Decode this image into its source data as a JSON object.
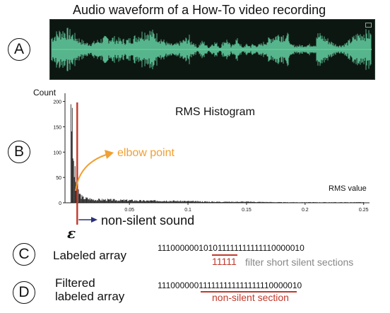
{
  "panels": {
    "a": "A",
    "b": "B",
    "c": "C",
    "d": "D"
  },
  "waveform": {
    "title": "Audio waveform of a How-To video recording",
    "color": "#5ec79a",
    "background": "#0d1712"
  },
  "chart_data": {
    "type": "bar",
    "title": "RMS Histogram",
    "xlabel": "RMS value",
    "ylabel": "Count",
    "xlim": [
      -0.005,
      0.255
    ],
    "ylim": [
      0,
      205
    ],
    "xticks": [
      0.05,
      0.1,
      0.15,
      0.2,
      0.25
    ],
    "xtick_labels": [
      "0.05",
      "0.1",
      "0.15",
      "0.2",
      "0.25"
    ],
    "yticks": [
      0,
      50,
      100,
      150,
      200
    ],
    "ytick_labels": [
      "0",
      "50",
      "100",
      "150",
      "200"
    ],
    "threshold": {
      "label": "ε",
      "x": 0.0,
      "color": "#c0392b"
    },
    "series": [
      {
        "x": [
          0.0,
          0.002,
          0.004,
          0.006,
          0.008,
          0.01,
          0.015,
          0.02,
          0.03,
          0.04,
          0.05,
          0.06,
          0.08,
          0.1,
          0.12,
          0.15,
          0.18,
          0.21,
          0.25
        ],
        "values": [
          225,
          80,
          45,
          25,
          15,
          10,
          8,
          6,
          6,
          5,
          5,
          4,
          4,
          3,
          2,
          2,
          1,
          1,
          1
        ]
      }
    ]
  },
  "annotations": {
    "elbow_point": "elbow point",
    "elbow_color": "#f0a032",
    "non_silent_sound": "non-silent sound",
    "arrow_color": "#2c2f7a"
  },
  "arrays": {
    "labeled_label": "Labeled array",
    "labeled_value": "111000000101011111111111110000010",
    "filter_bits": "11111",
    "filter_text": "filter short silent sections",
    "filtered_label_line1": "Filtered",
    "filtered_label_line2": "labeled array",
    "filtered_value": "111000000111111111111111110000010",
    "nonsilent_section_text": "non-silent section"
  }
}
